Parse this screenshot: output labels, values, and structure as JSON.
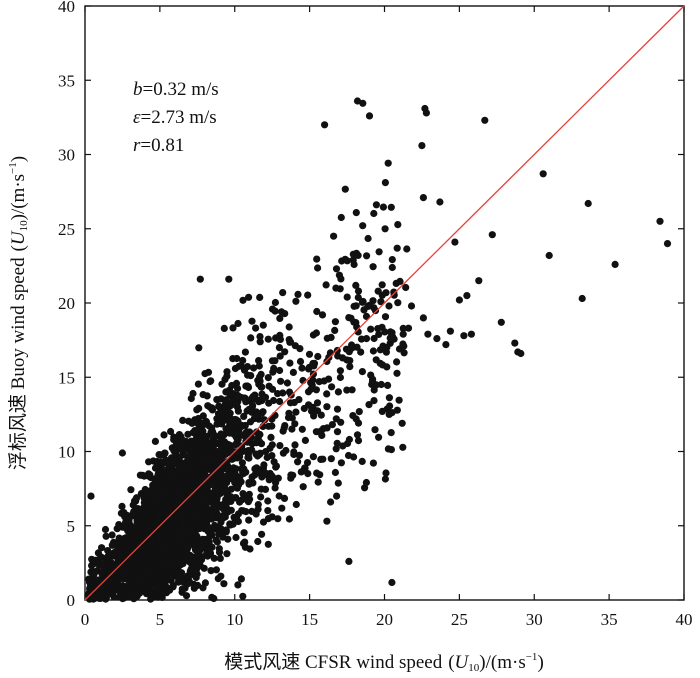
{
  "chart_data": {
    "type": "scatter",
    "title": "",
    "xlabel": "模式风速 CFSR wind speed (U10)/(m·s⁻¹)",
    "xlabel_parts": {
      "main": "模式风速 CFSR wind speed",
      "sym": "U",
      "sub": "10",
      "unit": "(m·s",
      "sup": "−1",
      "close": ")"
    },
    "ylabel": "浮标风速 Buoy wind speed (U10)/(m·s⁻¹)",
    "ylabel_parts": {
      "main": "浮标风速 Buoy wind speed",
      "sym": "U",
      "sub": "10",
      "unit": "(m·s",
      "sup": "−1",
      "close": ")"
    },
    "xlim": [
      0,
      40
    ],
    "ylim": [
      0,
      40
    ],
    "xticks": [
      "0",
      "5",
      "10",
      "15",
      "20",
      "25",
      "30",
      "35",
      "40"
    ],
    "yticks": [
      "0",
      "5",
      "10",
      "15",
      "20",
      "25",
      "30",
      "35",
      "40"
    ],
    "grid": false,
    "reference_line": {
      "type": "y=x",
      "color": "#e8403a"
    },
    "marker_color": "#111111",
    "annotations": [
      {
        "sym": "b",
        "text": "=0.32 m/s"
      },
      {
        "sym": "ε",
        "text": "=2.73 m/s"
      },
      {
        "sym": "r",
        "text": "=0.81"
      }
    ],
    "outlier_points": [
      [
        16.0,
        32.0
      ],
      [
        18.2,
        33.6
      ],
      [
        19.0,
        32.6
      ],
      [
        22.7,
        33.1
      ],
      [
        22.8,
        32.8
      ],
      [
        26.7,
        32.3
      ],
      [
        22.5,
        30.6
      ],
      [
        30.6,
        28.7
      ],
      [
        22.6,
        27.1
      ],
      [
        23.7,
        26.8
      ],
      [
        33.6,
        26.7
      ],
      [
        38.4,
        25.5
      ],
      [
        38.9,
        24.0
      ],
      [
        16.6,
        24.5
      ],
      [
        24.7,
        24.1
      ],
      [
        27.2,
        24.6
      ],
      [
        31.0,
        23.2
      ],
      [
        35.4,
        22.6
      ],
      [
        7.7,
        21.6
      ],
      [
        9.6,
        21.6
      ],
      [
        26.3,
        21.5
      ],
      [
        25.5,
        20.5
      ],
      [
        25.0,
        20.2
      ],
      [
        33.2,
        20.3
      ],
      [
        13.2,
        20.7
      ],
      [
        20.3,
        19.8
      ],
      [
        21.8,
        19.8
      ],
      [
        18.8,
        19.1
      ],
      [
        22.6,
        19.0
      ],
      [
        24.4,
        18.1
      ],
      [
        27.8,
        18.7
      ],
      [
        25.3,
        17.8
      ],
      [
        25.8,
        17.9
      ],
      [
        21.6,
        18.3
      ],
      [
        22.9,
        17.9
      ],
      [
        28.7,
        17.3
      ],
      [
        28.9,
        16.7
      ],
      [
        29.1,
        16.6
      ],
      [
        23.5,
        17.6
      ],
      [
        24.1,
        17.2
      ],
      [
        20.5,
        18.0
      ],
      [
        19.9,
        17.1
      ],
      [
        21.0,
        16.9
      ],
      [
        17.2,
        16.3
      ],
      [
        16.4,
        6.6
      ],
      [
        16.8,
        7.0
      ],
      [
        8.6,
        0.1
      ],
      [
        2.3,
        0.2
      ],
      [
        0.3,
        1.2
      ],
      [
        0.6,
        0.2
      ],
      [
        1.1,
        0.9
      ],
      [
        0.4,
        7.0
      ],
      [
        2.5,
        9.9
      ]
    ],
    "dense_cloud": {
      "count": 3200,
      "x_range": [
        0.2,
        21.5
      ],
      "y_over_x_center": 0.95,
      "spread": 0.25,
      "seed": 7
    }
  }
}
